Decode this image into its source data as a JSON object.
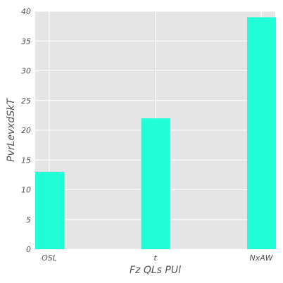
{
  "chart_data": {
    "type": "bar",
    "title": "",
    "xlabel": "Fz QLs  PUl",
    "ylabel": "PvrLevxdSkT",
    "categories": [
      "OSL",
      "t",
      "NxAW"
    ],
    "values": [
      13,
      22,
      39
    ],
    "ylim": [
      0,
      40
    ],
    "yticks": [
      0,
      5,
      10,
      15,
      20,
      25,
      30,
      35,
      40
    ],
    "grid": true,
    "colors": {
      "bar": "#22ffd6",
      "background": "#e5e5e5",
      "grid": "#ffffff"
    }
  }
}
